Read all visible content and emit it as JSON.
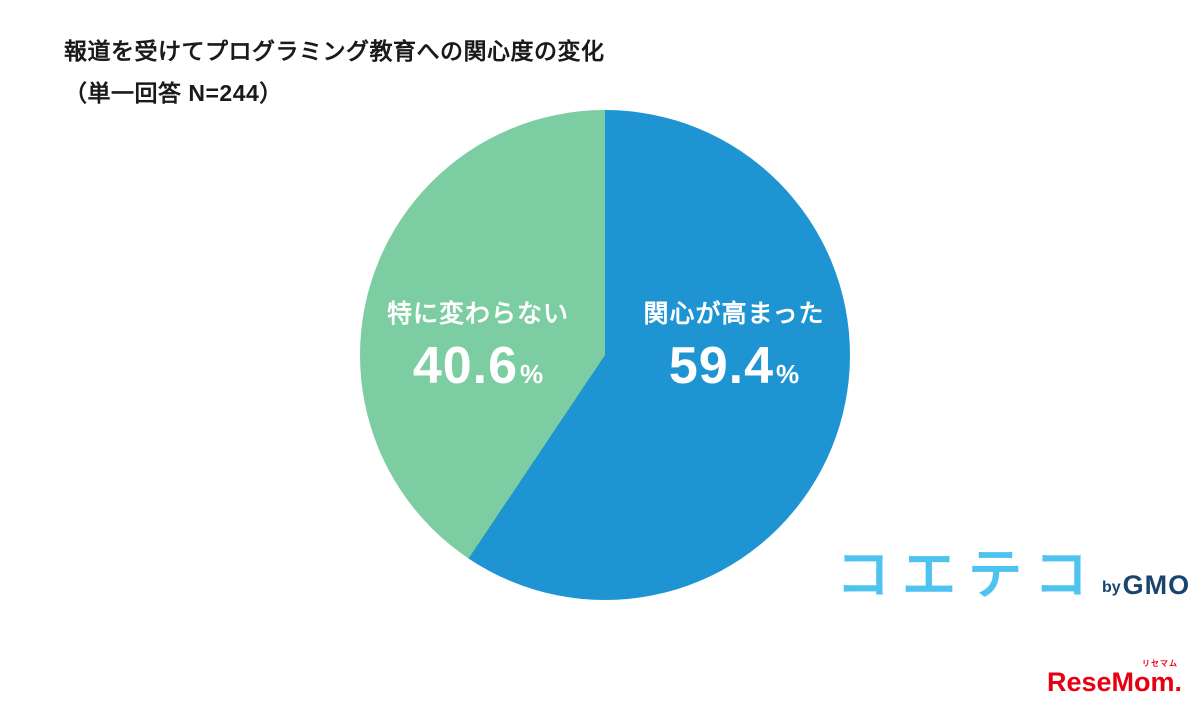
{
  "title": "報道を受けてプログラミング教育への関心度の変化",
  "subtitle": "（単一回答 N=244）",
  "chart_data": {
    "type": "pie",
    "title": "報道を受けてプログラミング教育への関心度の変化",
    "subtitle": "（単一回答 N=244）",
    "labels": [
      "関心が高まった",
      "特に変わらない"
    ],
    "values": [
      59.4,
      40.6
    ],
    "unit": "%",
    "colors": [
      "#1e95d2",
      "#7dcda2"
    ],
    "start_angle_deg": 0,
    "direction": "clockwise",
    "legend_position": "none",
    "data_labels": "inside"
  },
  "slices": {
    "increased": {
      "label": "関心が高まった",
      "value": "59.4",
      "unit": "%"
    },
    "unchanged": {
      "label": "特に変わらない",
      "value": "40.6",
      "unit": "%"
    }
  },
  "logos": {
    "coeteco": "コエテコ",
    "by": "by",
    "gmo": "GMO",
    "resemom": "ReseMom.",
    "resemom_ruby": "リセマム"
  },
  "colors": {
    "blue": "#1e95d2",
    "green": "#7dcda2",
    "logo-blue": "#4fc3f0",
    "gmo-navy": "#1a4470",
    "resemom-red": "#e60012"
  }
}
